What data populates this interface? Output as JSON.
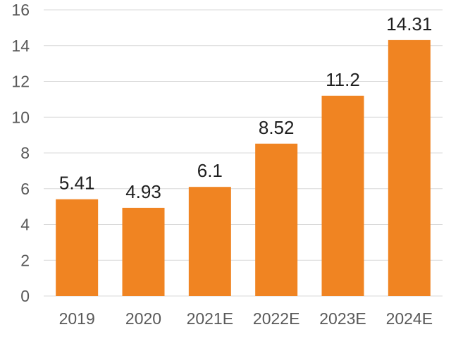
{
  "chart_data": {
    "type": "bar",
    "categories": [
      "2019",
      "2020",
      "2021E",
      "2022E",
      "2023E",
      "2024E"
    ],
    "values": [
      5.41,
      4.93,
      6.1,
      8.52,
      11.2,
      14.31
    ],
    "data_labels": [
      "5.41",
      "4.93",
      "6.1",
      "8.52",
      "11.2",
      "14.31"
    ],
    "y_ticks": [
      "0",
      "2",
      "4",
      "6",
      "8",
      "10",
      "12",
      "14",
      "16"
    ],
    "ylim": [
      0,
      16
    ],
    "grid": true,
    "legend": "none",
    "title": "",
    "xlabel": "",
    "ylabel": "",
    "bar_color": "#f08422",
    "grid_color": "#d9d9d9"
  }
}
